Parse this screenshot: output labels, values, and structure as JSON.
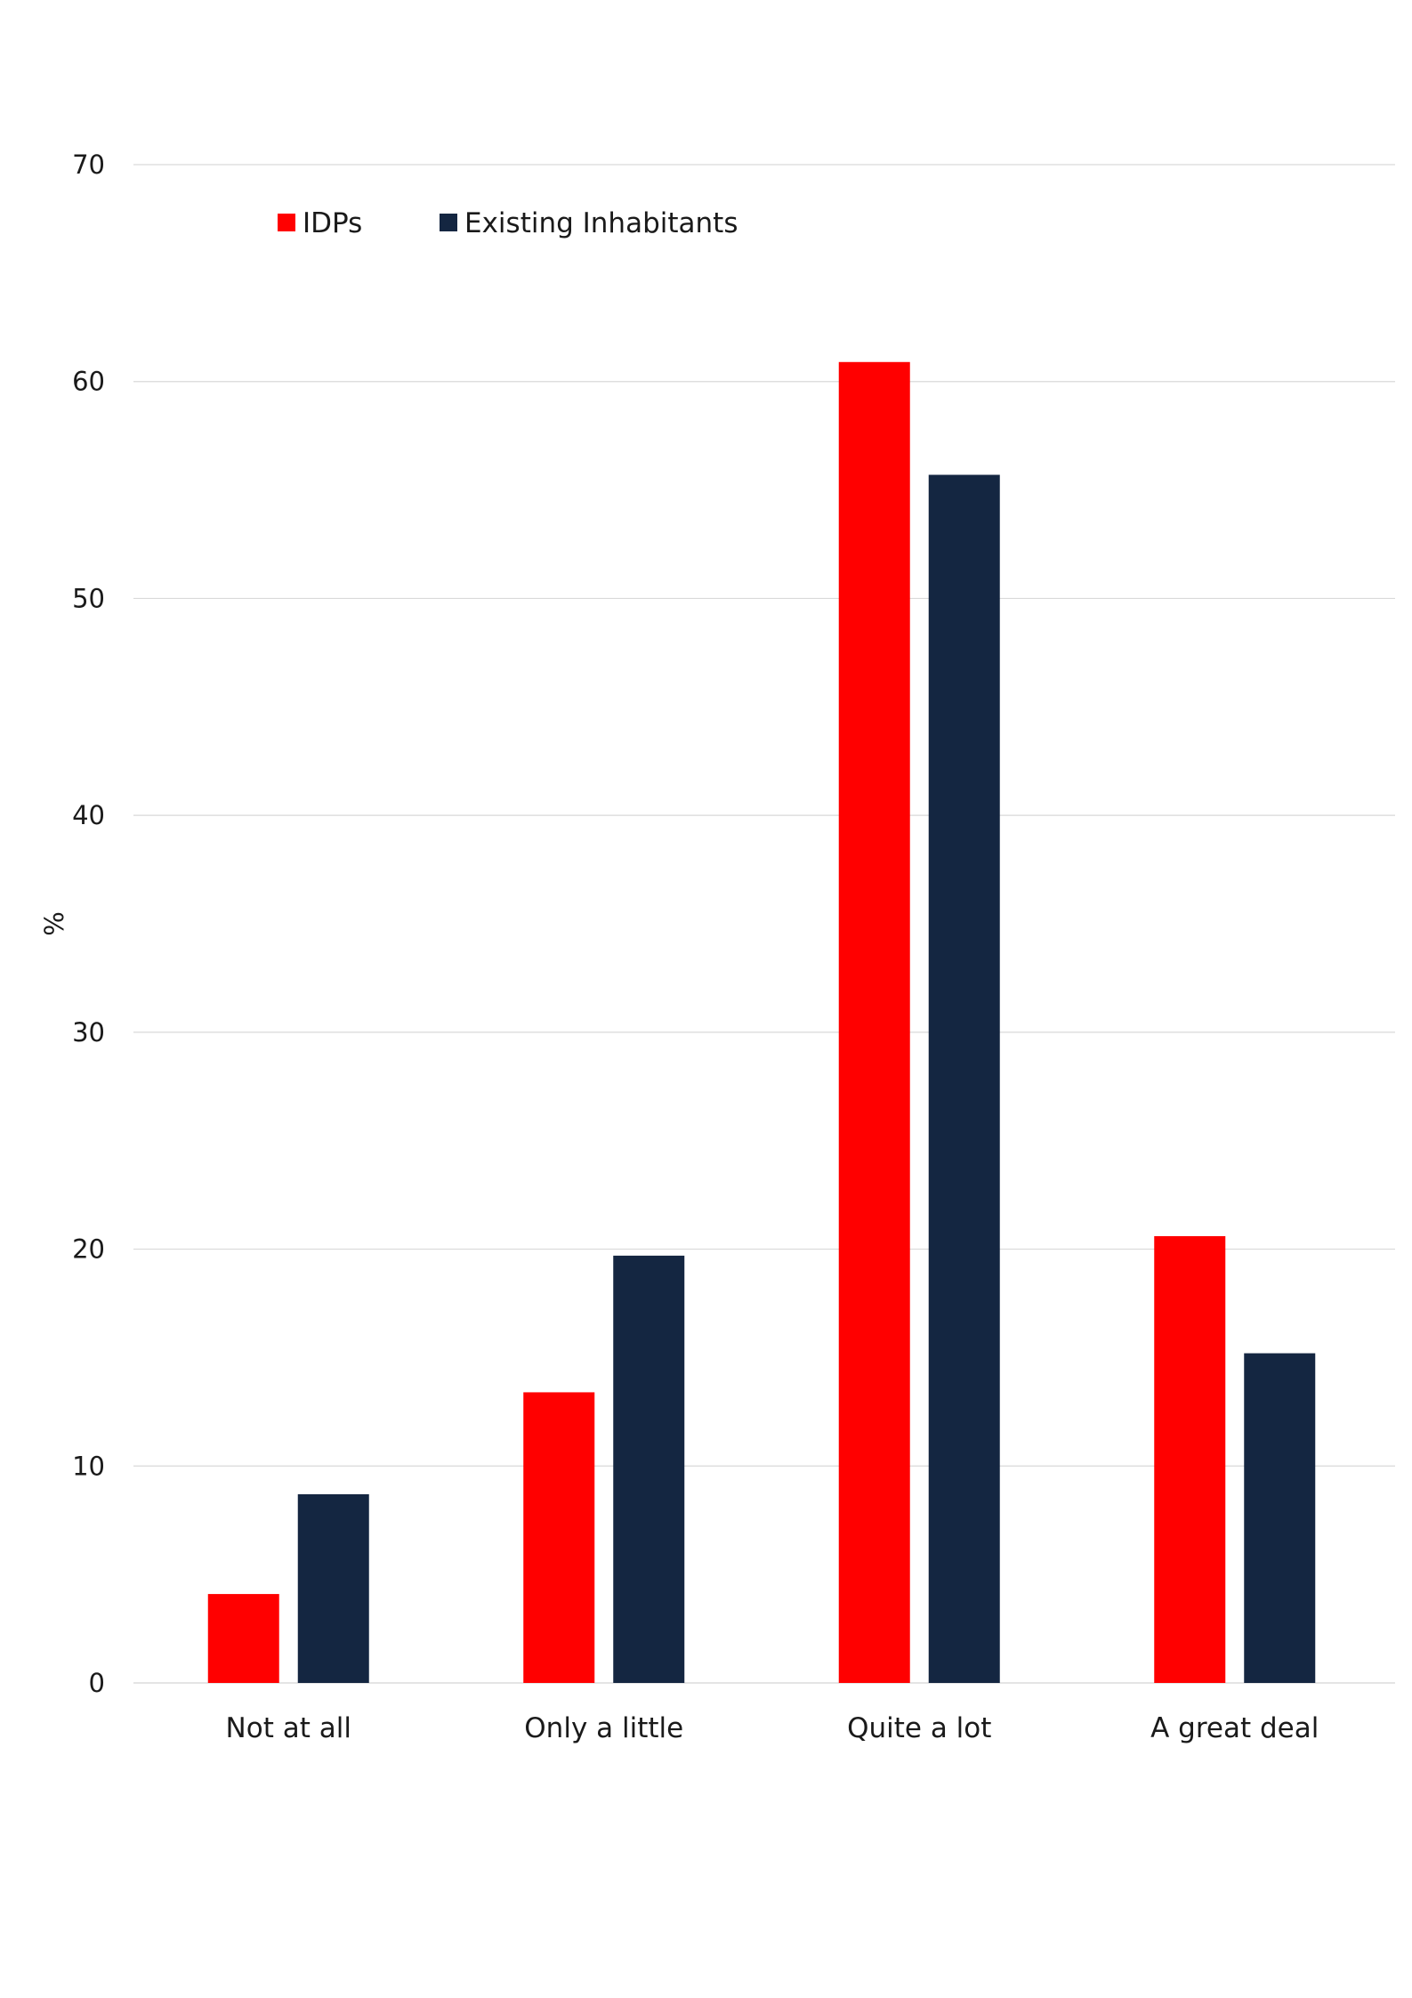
{
  "chart_data": {
    "type": "bar",
    "categories": [
      "Not at all",
      "Only a little",
      "Quite a lot",
      "A great deal"
    ],
    "series": [
      {
        "name": "IDPs",
        "color": "#ff0000",
        "values": [
          4.1,
          13.4,
          60.9,
          20.6
        ]
      },
      {
        "name": "Existing Inhabitants",
        "color": "#142641",
        "values": [
          8.7,
          19.7,
          55.7,
          15.2
        ]
      }
    ],
    "title": "",
    "xlabel": "",
    "ylabel": "%",
    "ylim": [
      0,
      70
    ],
    "yticks": [
      "0",
      "10",
      "20",
      "30",
      "40",
      "50",
      "60",
      "70"
    ],
    "grid": true,
    "legend_position": "top-left"
  }
}
